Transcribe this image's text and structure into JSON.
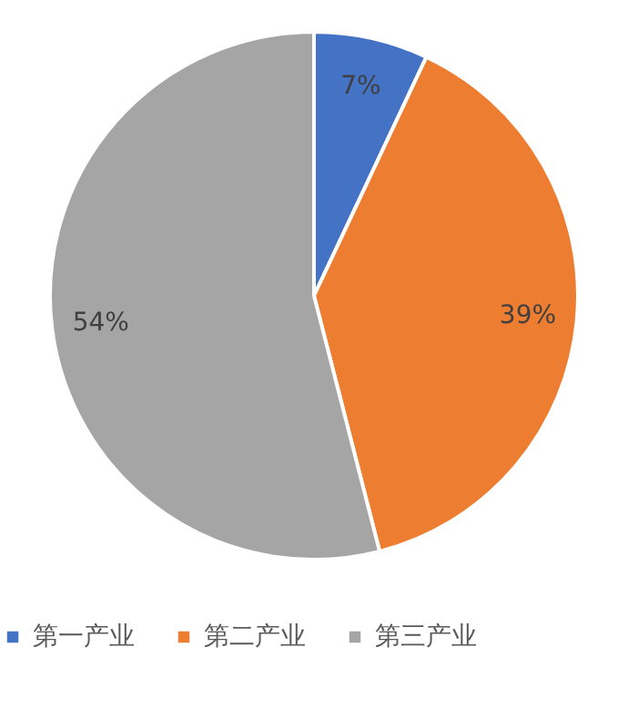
{
  "chart_data": {
    "type": "pie",
    "categories": [
      "第一产业",
      "第二产业",
      "第三产业"
    ],
    "values": [
      7,
      39,
      54
    ],
    "colors": [
      "#4472c4",
      "#ed7d31",
      "#a5a5a5"
    ],
    "value_labels": [
      "7%",
      "39%",
      "54%"
    ],
    "legend": "bottom"
  }
}
